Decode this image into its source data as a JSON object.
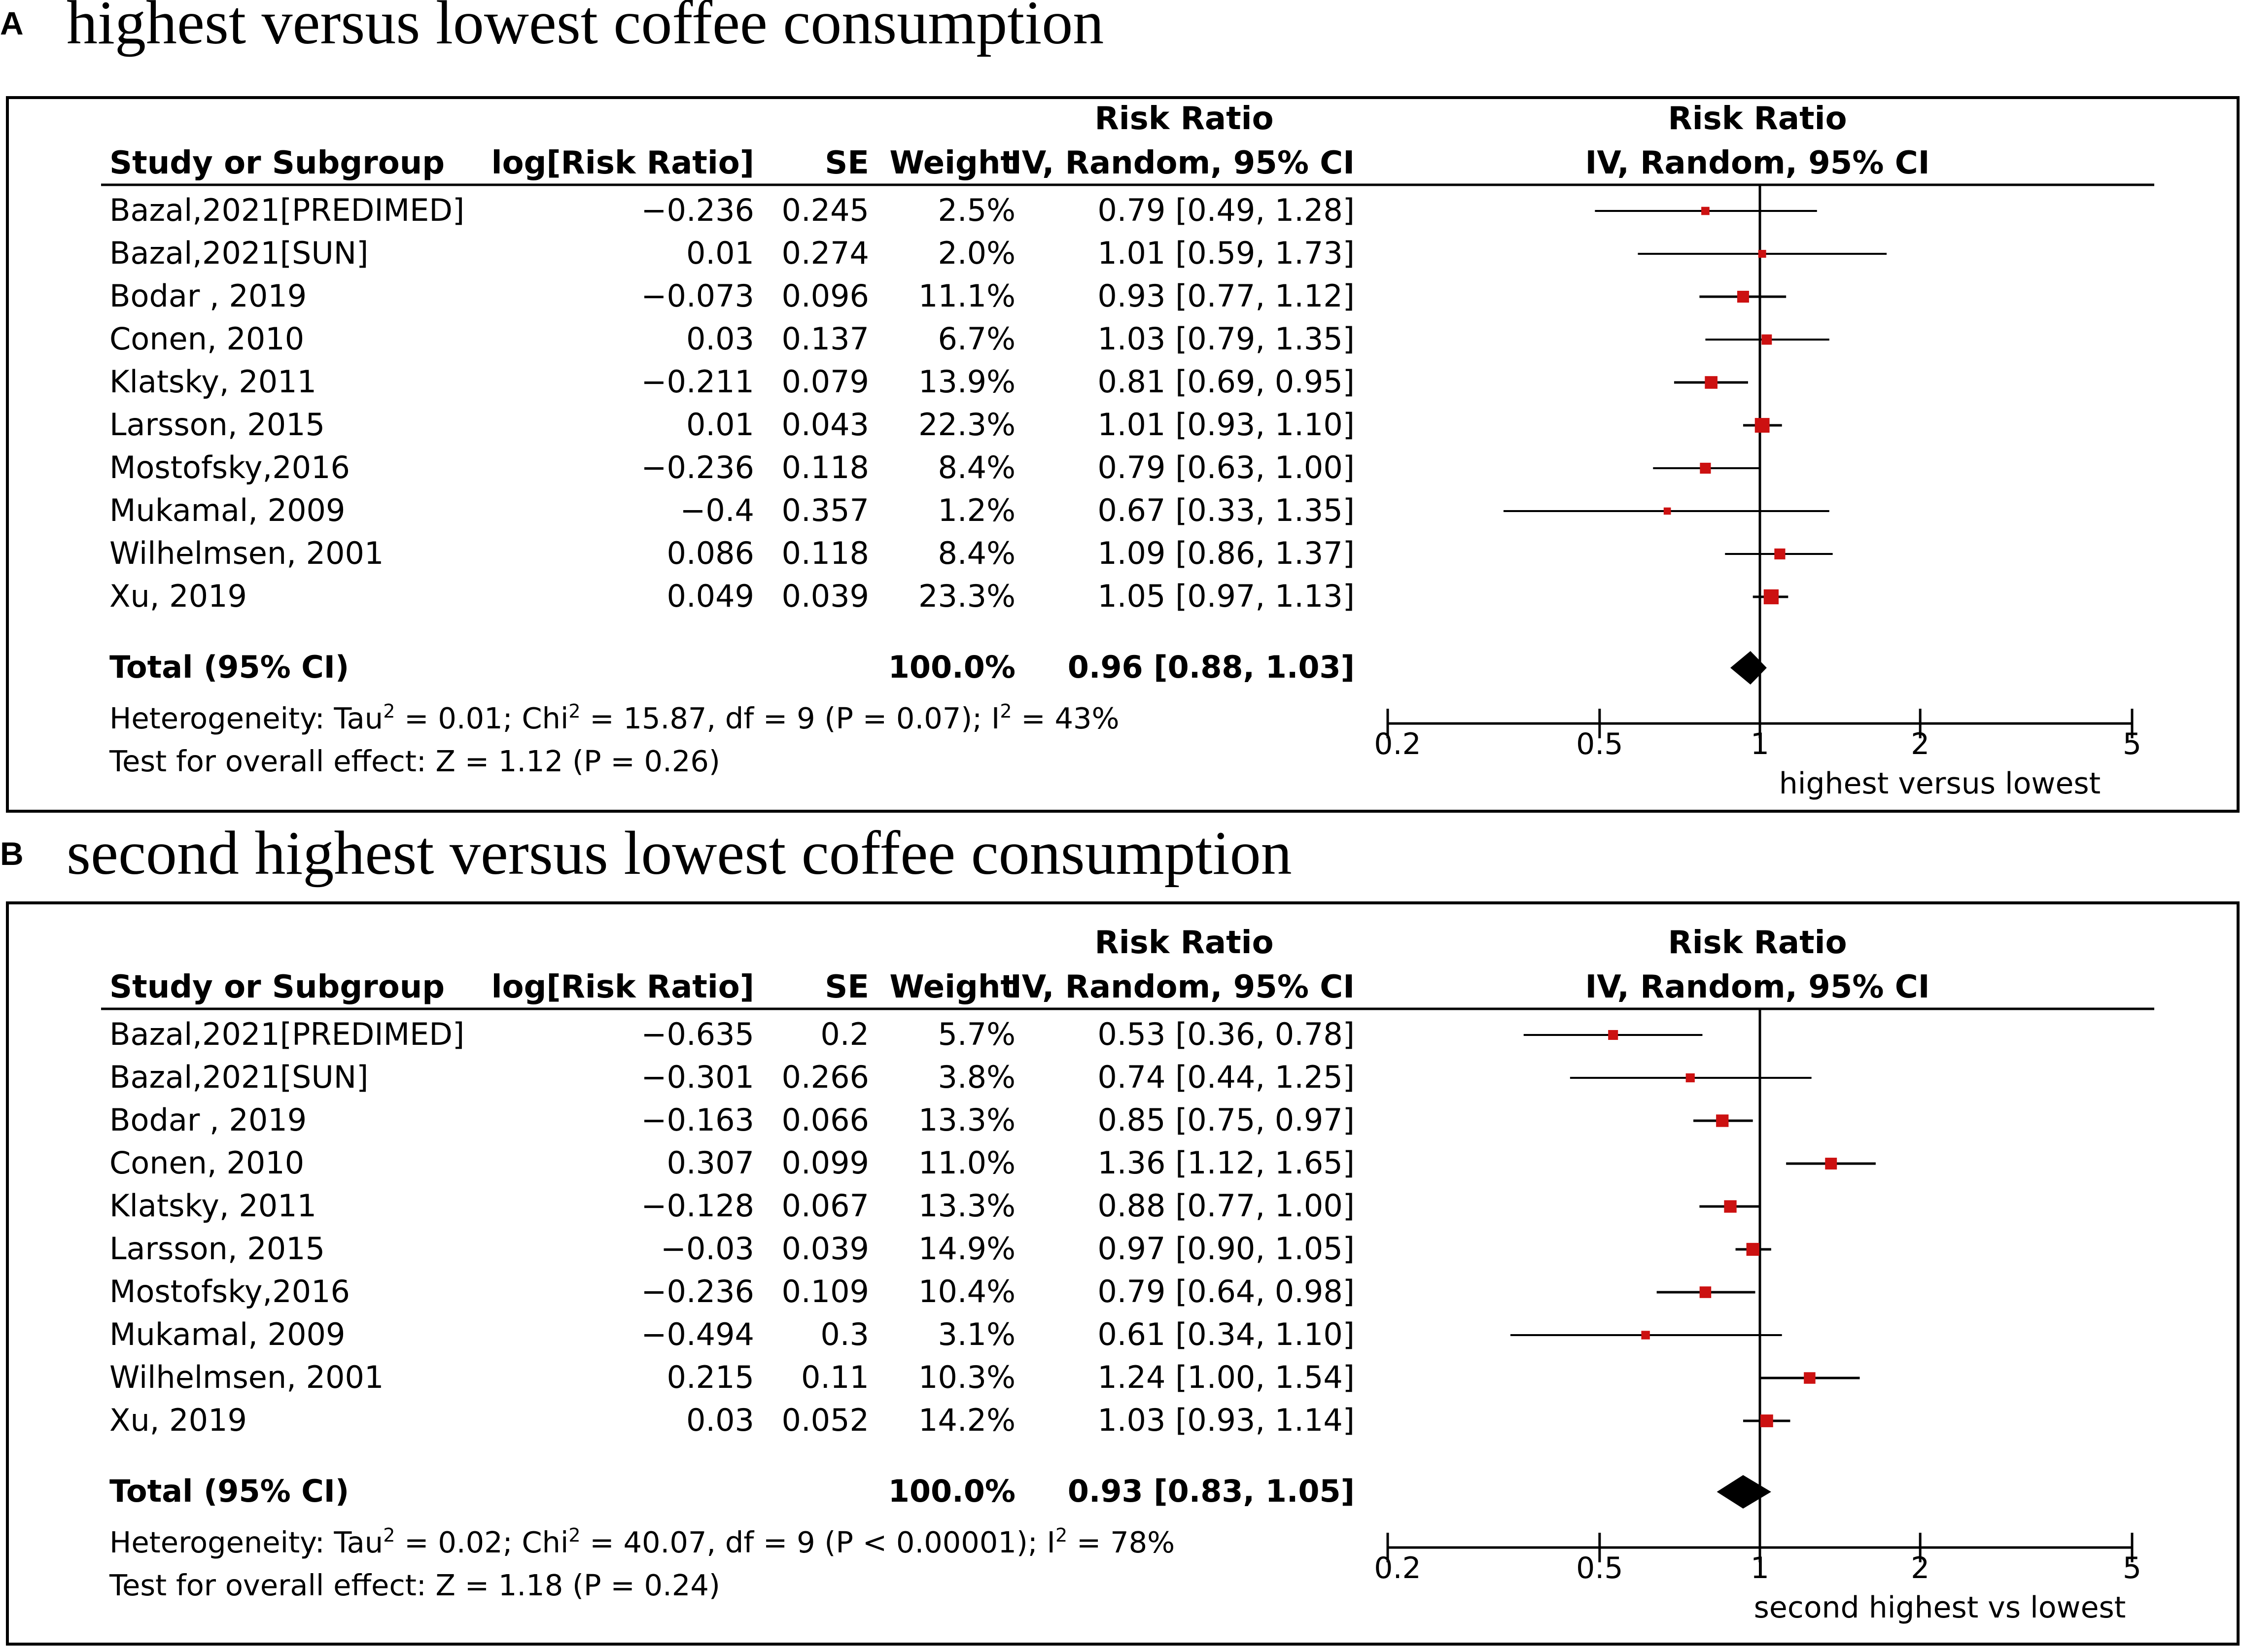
{
  "chart_data": [
    {
      "type": "forest",
      "panel_label": "A",
      "title": "highest versus lowest coffee consumption",
      "columns": {
        "study": "Study or Subgroup",
        "logrr": "log[Risk Ratio]",
        "se": "SE",
        "weight": "Weight",
        "rr_top": "Risk Ratio",
        "rr_bottom": "IV, Random, 95% CI",
        "plot_top": "Risk Ratio",
        "plot_bottom": "IV, Random, 95% CI"
      },
      "studies": [
        {
          "name": "Bazal,2021[PREDIMED]",
          "logrr": "−0.236",
          "se": "0.245",
          "weight": "2.5%",
          "ci_text": "0.79 [0.49, 1.28]",
          "rr": 0.79,
          "lo": 0.49,
          "hi": 1.28,
          "w": 2.5
        },
        {
          "name": "Bazal,2021[SUN]",
          "logrr": "0.01",
          "se": "0.274",
          "weight": "2.0%",
          "ci_text": "1.01 [0.59, 1.73]",
          "rr": 1.01,
          "lo": 0.59,
          "hi": 1.73,
          "w": 2.0
        },
        {
          "name": "Bodar , 2019",
          "logrr": "−0.073",
          "se": "0.096",
          "weight": "11.1%",
          "ci_text": "0.93 [0.77, 1.12]",
          "rr": 0.93,
          "lo": 0.77,
          "hi": 1.12,
          "w": 11.1
        },
        {
          "name": "Conen, 2010",
          "logrr": "0.03",
          "se": "0.137",
          "weight": "6.7%",
          "ci_text": "1.03 [0.79, 1.35]",
          "rr": 1.03,
          "lo": 0.79,
          "hi": 1.35,
          "w": 6.7
        },
        {
          "name": "Klatsky, 2011",
          "logrr": "−0.211",
          "se": "0.079",
          "weight": "13.9%",
          "ci_text": "0.81 [0.69, 0.95]",
          "rr": 0.81,
          "lo": 0.69,
          "hi": 0.95,
          "w": 13.9
        },
        {
          "name": "Larsson, 2015",
          "logrr": "0.01",
          "se": "0.043",
          "weight": "22.3%",
          "ci_text": "1.01 [0.93, 1.10]",
          "rr": 1.01,
          "lo": 0.93,
          "hi": 1.1,
          "w": 22.3
        },
        {
          "name": "Mostofsky,2016",
          "logrr": "−0.236",
          "se": "0.118",
          "weight": "8.4%",
          "ci_text": "0.79 [0.63, 1.00]",
          "rr": 0.79,
          "lo": 0.63,
          "hi": 1.0,
          "w": 8.4
        },
        {
          "name": "Mukamal, 2009",
          "logrr": "−0.4",
          "se": "0.357",
          "weight": "1.2%",
          "ci_text": "0.67 [0.33, 1.35]",
          "rr": 0.67,
          "lo": 0.33,
          "hi": 1.35,
          "w": 1.2
        },
        {
          "name": "Wilhelmsen, 2001",
          "logrr": "0.086",
          "se": "0.118",
          "weight": "8.4%",
          "ci_text": "1.09 [0.86, 1.37]",
          "rr": 1.09,
          "lo": 0.86,
          "hi": 1.37,
          "w": 8.4
        },
        {
          "name": "Xu, 2019",
          "logrr": "0.049",
          "se": "0.039",
          "weight": "23.3%",
          "ci_text": "1.05 [0.97, 1.13]",
          "rr": 1.05,
          "lo": 0.97,
          "hi": 1.13,
          "w": 23.3
        }
      ],
      "total": {
        "label": "Total (95% CI)",
        "weight": "100.0%",
        "ci_text": "0.96 [0.88, 1.03]",
        "rr": 0.96,
        "lo": 0.88,
        "hi": 1.03
      },
      "heterogeneity": {
        "tau": "0.01",
        "chi": "15.87",
        "rest": "df = 9 (P = 0.07); I",
        "i2": "43%"
      },
      "overall_test": "Test for overall effect: Z = 1.12 (P = 0.26)",
      "x_ticks": [
        0.2,
        0.5,
        1,
        2,
        5
      ],
      "x_tick_labels": [
        "0.2",
        "0.5",
        "1",
        "2",
        "5"
      ],
      "xlim": [
        0.2,
        5
      ],
      "x_scale": "log",
      "xlabel": "highest versus lowest"
    },
    {
      "type": "forest",
      "panel_label": "B",
      "title": "second highest versus lowest coffee consumption",
      "columns": {
        "study": "Study or Subgroup",
        "logrr": "log[Risk Ratio]",
        "se": "SE",
        "weight": "Weight",
        "rr_top": "Risk Ratio",
        "rr_bottom": "IV, Random, 95% CI",
        "plot_top": "Risk Ratio",
        "plot_bottom": "IV, Random, 95% CI"
      },
      "studies": [
        {
          "name": "Bazal,2021[PREDIMED]",
          "logrr": "−0.635",
          "se": "0.2",
          "weight": "5.7%",
          "ci_text": "0.53 [0.36, 0.78]",
          "rr": 0.53,
          "lo": 0.36,
          "hi": 0.78,
          "w": 5.7
        },
        {
          "name": "Bazal,2021[SUN]",
          "logrr": "−0.301",
          "se": "0.266",
          "weight": "3.8%",
          "ci_text": "0.74 [0.44, 1.25]",
          "rr": 0.74,
          "lo": 0.44,
          "hi": 1.25,
          "w": 3.8
        },
        {
          "name": "Bodar , 2019",
          "logrr": "−0.163",
          "se": "0.066",
          "weight": "13.3%",
          "ci_text": "0.85 [0.75, 0.97]",
          "rr": 0.85,
          "lo": 0.75,
          "hi": 0.97,
          "w": 13.3
        },
        {
          "name": "Conen, 2010",
          "logrr": "0.307",
          "se": "0.099",
          "weight": "11.0%",
          "ci_text": "1.36 [1.12, 1.65]",
          "rr": 1.36,
          "lo": 1.12,
          "hi": 1.65,
          "w": 11.0
        },
        {
          "name": "Klatsky, 2011",
          "logrr": "−0.128",
          "se": "0.067",
          "weight": "13.3%",
          "ci_text": "0.88 [0.77, 1.00]",
          "rr": 0.88,
          "lo": 0.77,
          "hi": 1.0,
          "w": 13.3
        },
        {
          "name": "Larsson, 2015",
          "logrr": "−0.03",
          "se": "0.039",
          "weight": "14.9%",
          "ci_text": "0.97 [0.90, 1.05]",
          "rr": 0.97,
          "lo": 0.9,
          "hi": 1.05,
          "w": 14.9
        },
        {
          "name": "Mostofsky,2016",
          "logrr": "−0.236",
          "se": "0.109",
          "weight": "10.4%",
          "ci_text": "0.79 [0.64, 0.98]",
          "rr": 0.79,
          "lo": 0.64,
          "hi": 0.98,
          "w": 10.4
        },
        {
          "name": "Mukamal, 2009",
          "logrr": "−0.494",
          "se": "0.3",
          "weight": "3.1%",
          "ci_text": "0.61 [0.34, 1.10]",
          "rr": 0.61,
          "lo": 0.34,
          "hi": 1.1,
          "w": 3.1
        },
        {
          "name": "Wilhelmsen, 2001",
          "logrr": "0.215",
          "se": "0.11",
          "weight": "10.3%",
          "ci_text": "1.24 [1.00, 1.54]",
          "rr": 1.24,
          "lo": 1.0,
          "hi": 1.54,
          "w": 10.3
        },
        {
          "name": "Xu, 2019",
          "logrr": "0.03",
          "se": "0.052",
          "weight": "14.2%",
          "ci_text": "1.03 [0.93, 1.14]",
          "rr": 1.03,
          "lo": 0.93,
          "hi": 1.14,
          "w": 14.2
        }
      ],
      "total": {
        "label": "Total (95% CI)",
        "weight": "100.0%",
        "ci_text": "0.93 [0.83, 1.05]",
        "rr": 0.93,
        "lo": 0.83,
        "hi": 1.05
      },
      "heterogeneity": {
        "tau": "0.02",
        "chi": "40.07",
        "rest": "df = 9 (P < 0.00001); I",
        "i2": "78%"
      },
      "overall_test": "Test for overall effect: Z = 1.18 (P = 0.24)",
      "x_ticks": [
        0.2,
        0.5,
        1,
        2,
        5
      ],
      "x_tick_labels": [
        "0.2",
        "0.5",
        "1",
        "2",
        "5"
      ],
      "xlim": [
        0.2,
        5
      ],
      "x_scale": "log",
      "xlabel": "second highest vs lowest"
    }
  ],
  "colors": {
    "marker": "#cc1111",
    "line": "#000000",
    "diamond": "#000000"
  }
}
